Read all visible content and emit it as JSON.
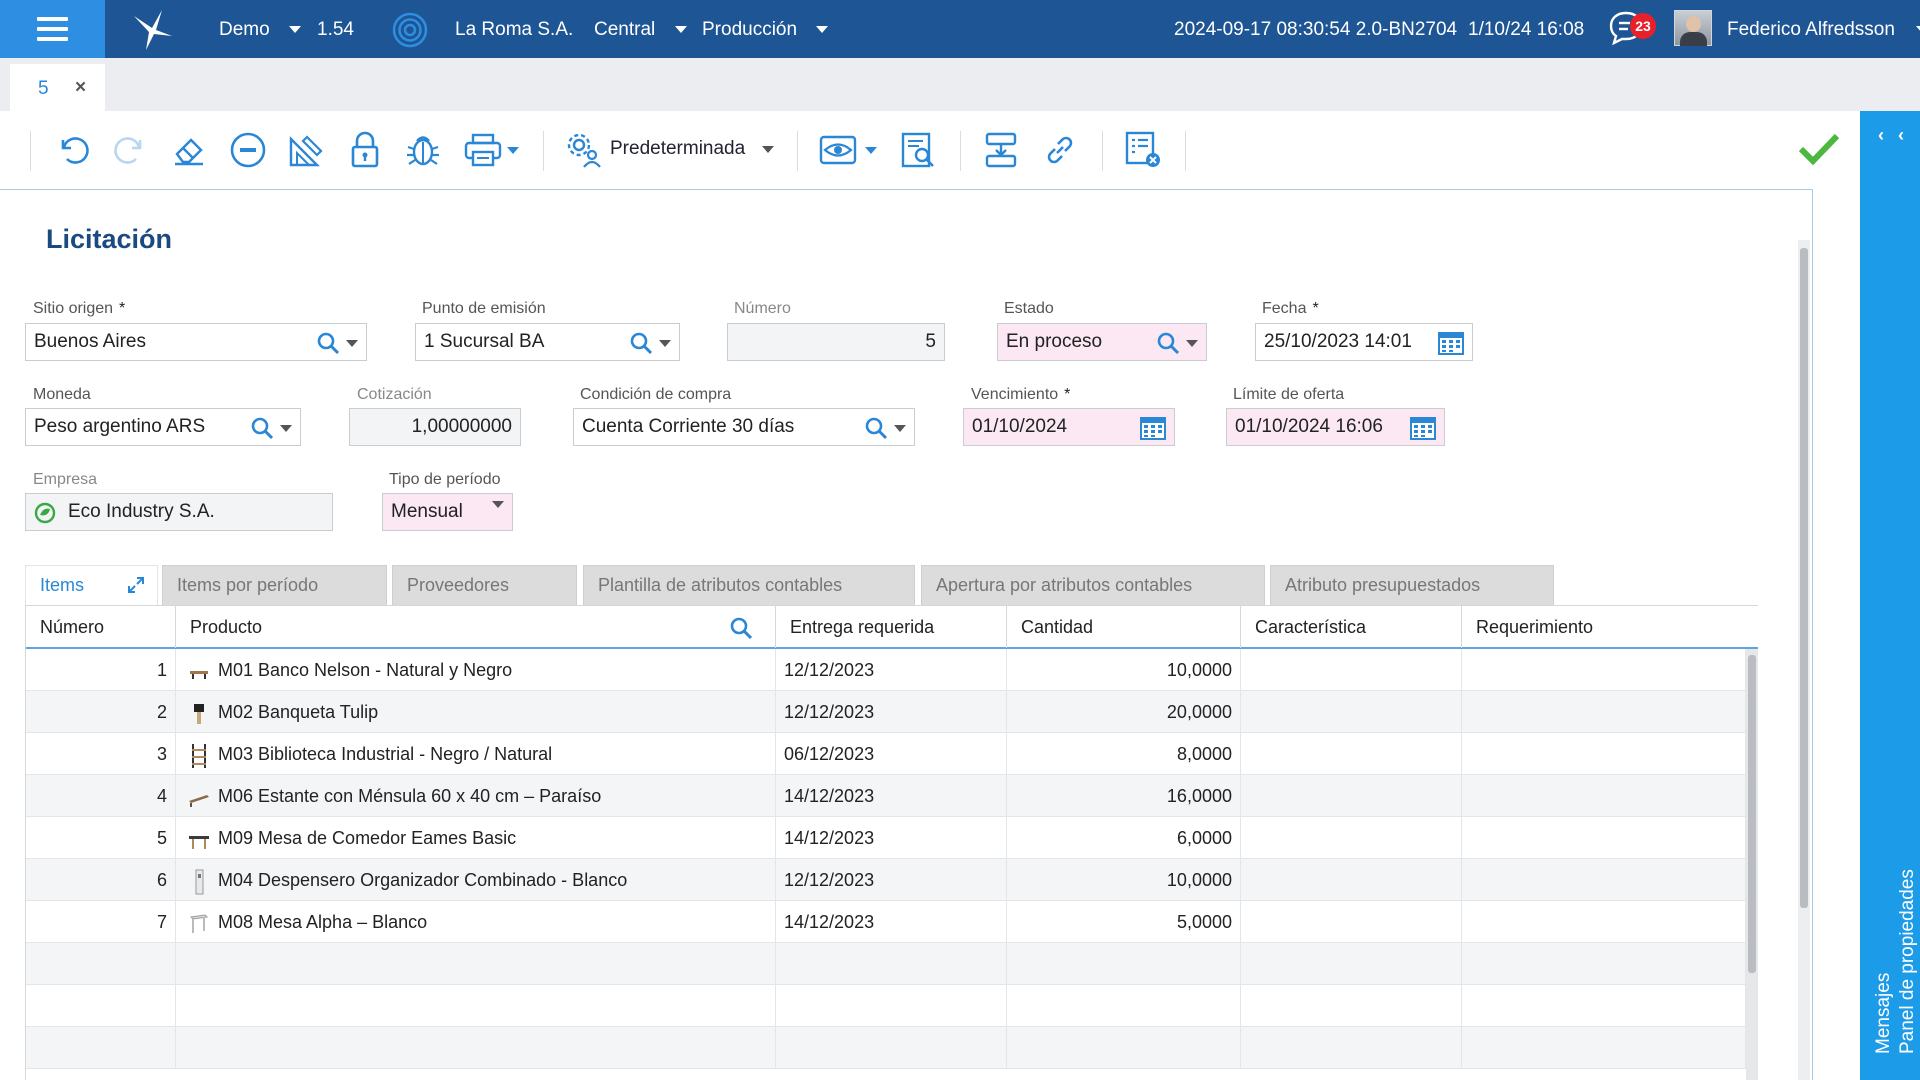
{
  "topbar": {
    "app": "Demo",
    "version": "1.54",
    "company": "La Roma S.A.",
    "branch": "Central",
    "environment": "Producción",
    "build": "2024-09-17 08:30:54 2.0-BN2704",
    "datetime": "1/10/24 16:08",
    "notifications": "23",
    "user": "Federico Alfredsson"
  },
  "doc_tab": {
    "label": "5",
    "close": "×"
  },
  "toolbar": {
    "view_label": "Predeterminada"
  },
  "right_panel": {
    "messages": "Mensajes",
    "properties": "Panel de propiedades"
  },
  "form": {
    "title": "Licitación",
    "fields": {
      "sitio_origen": {
        "label": "Sitio origen",
        "value": "Buenos Aires",
        "required": "*"
      },
      "punto_emision": {
        "label": "Punto de emisión",
        "value": "1 Sucursal BA"
      },
      "numero": {
        "label": "Número",
        "value": "5"
      },
      "estado": {
        "label": "Estado",
        "value": "En proceso"
      },
      "fecha": {
        "label": "Fecha",
        "value": "25/10/2023 14:01",
        "required": "*"
      },
      "moneda": {
        "label": "Moneda",
        "value": "Peso argentino ARS"
      },
      "cotizacion": {
        "label": "Cotización",
        "value": "1,00000000"
      },
      "condicion": {
        "label": "Condición de compra",
        "value": "Cuenta Corriente 30 días"
      },
      "vencimiento": {
        "label": "Vencimiento",
        "value": "01/10/2024",
        "required": "*"
      },
      "limite": {
        "label": "Límite de oferta",
        "value": "01/10/2024 16:06"
      },
      "empresa": {
        "label": "Empresa",
        "value": "Eco Industry S.A."
      },
      "tipo_periodo": {
        "label": "Tipo de período",
        "value": "Mensual"
      }
    }
  },
  "tabs": [
    "Items",
    "Items por período",
    "Proveedores",
    "Plantilla de atributos contables",
    "Apertura por atributos contables",
    "Atributo presupuestados"
  ],
  "grid": {
    "headers": [
      "Número",
      "Producto",
      "Entrega requerida",
      "Cantidad",
      "Característica",
      "Requerimiento"
    ],
    "rows": [
      {
        "num": "1",
        "product": "M01 Banco Nelson - Natural y Negro",
        "date": "12/12/2023",
        "qty": "10,0000",
        "icon": "bench-icon"
      },
      {
        "num": "2",
        "product": "M02 Banqueta Tulip",
        "date": "12/12/2023",
        "qty": "20,0000",
        "icon": "stool-icon"
      },
      {
        "num": "3",
        "product": "M03 Biblioteca Industrial - Negro / Natural",
        "date": "06/12/2023",
        "qty": "8,0000",
        "icon": "bookshelf-icon"
      },
      {
        "num": "4",
        "product": "M06 Estante con Ménsula 60 x 40 cm – Paraíso",
        "date": "14/12/2023",
        "qty": "16,0000",
        "icon": "shelf-icon"
      },
      {
        "num": "5",
        "product": "M09 Mesa de Comedor Eames Basic",
        "date": "14/12/2023",
        "qty": "6,0000",
        "icon": "table-icon"
      },
      {
        "num": "6",
        "product": "M04 Despensero Organizador Combinado - Blanco",
        "date": "12/12/2023",
        "qty": "10,0000",
        "icon": "pantry-icon"
      },
      {
        "num": "7",
        "product": "M08 Mesa Alpha – Blanco",
        "date": "14/12/2023",
        "qty": "5,0000",
        "icon": "desk-icon"
      }
    ]
  },
  "colors": {
    "topbar": "#1e5594",
    "accent": "#2a87d6",
    "panel": "#1b9be8",
    "required_bg": "#fbe8f3"
  }
}
